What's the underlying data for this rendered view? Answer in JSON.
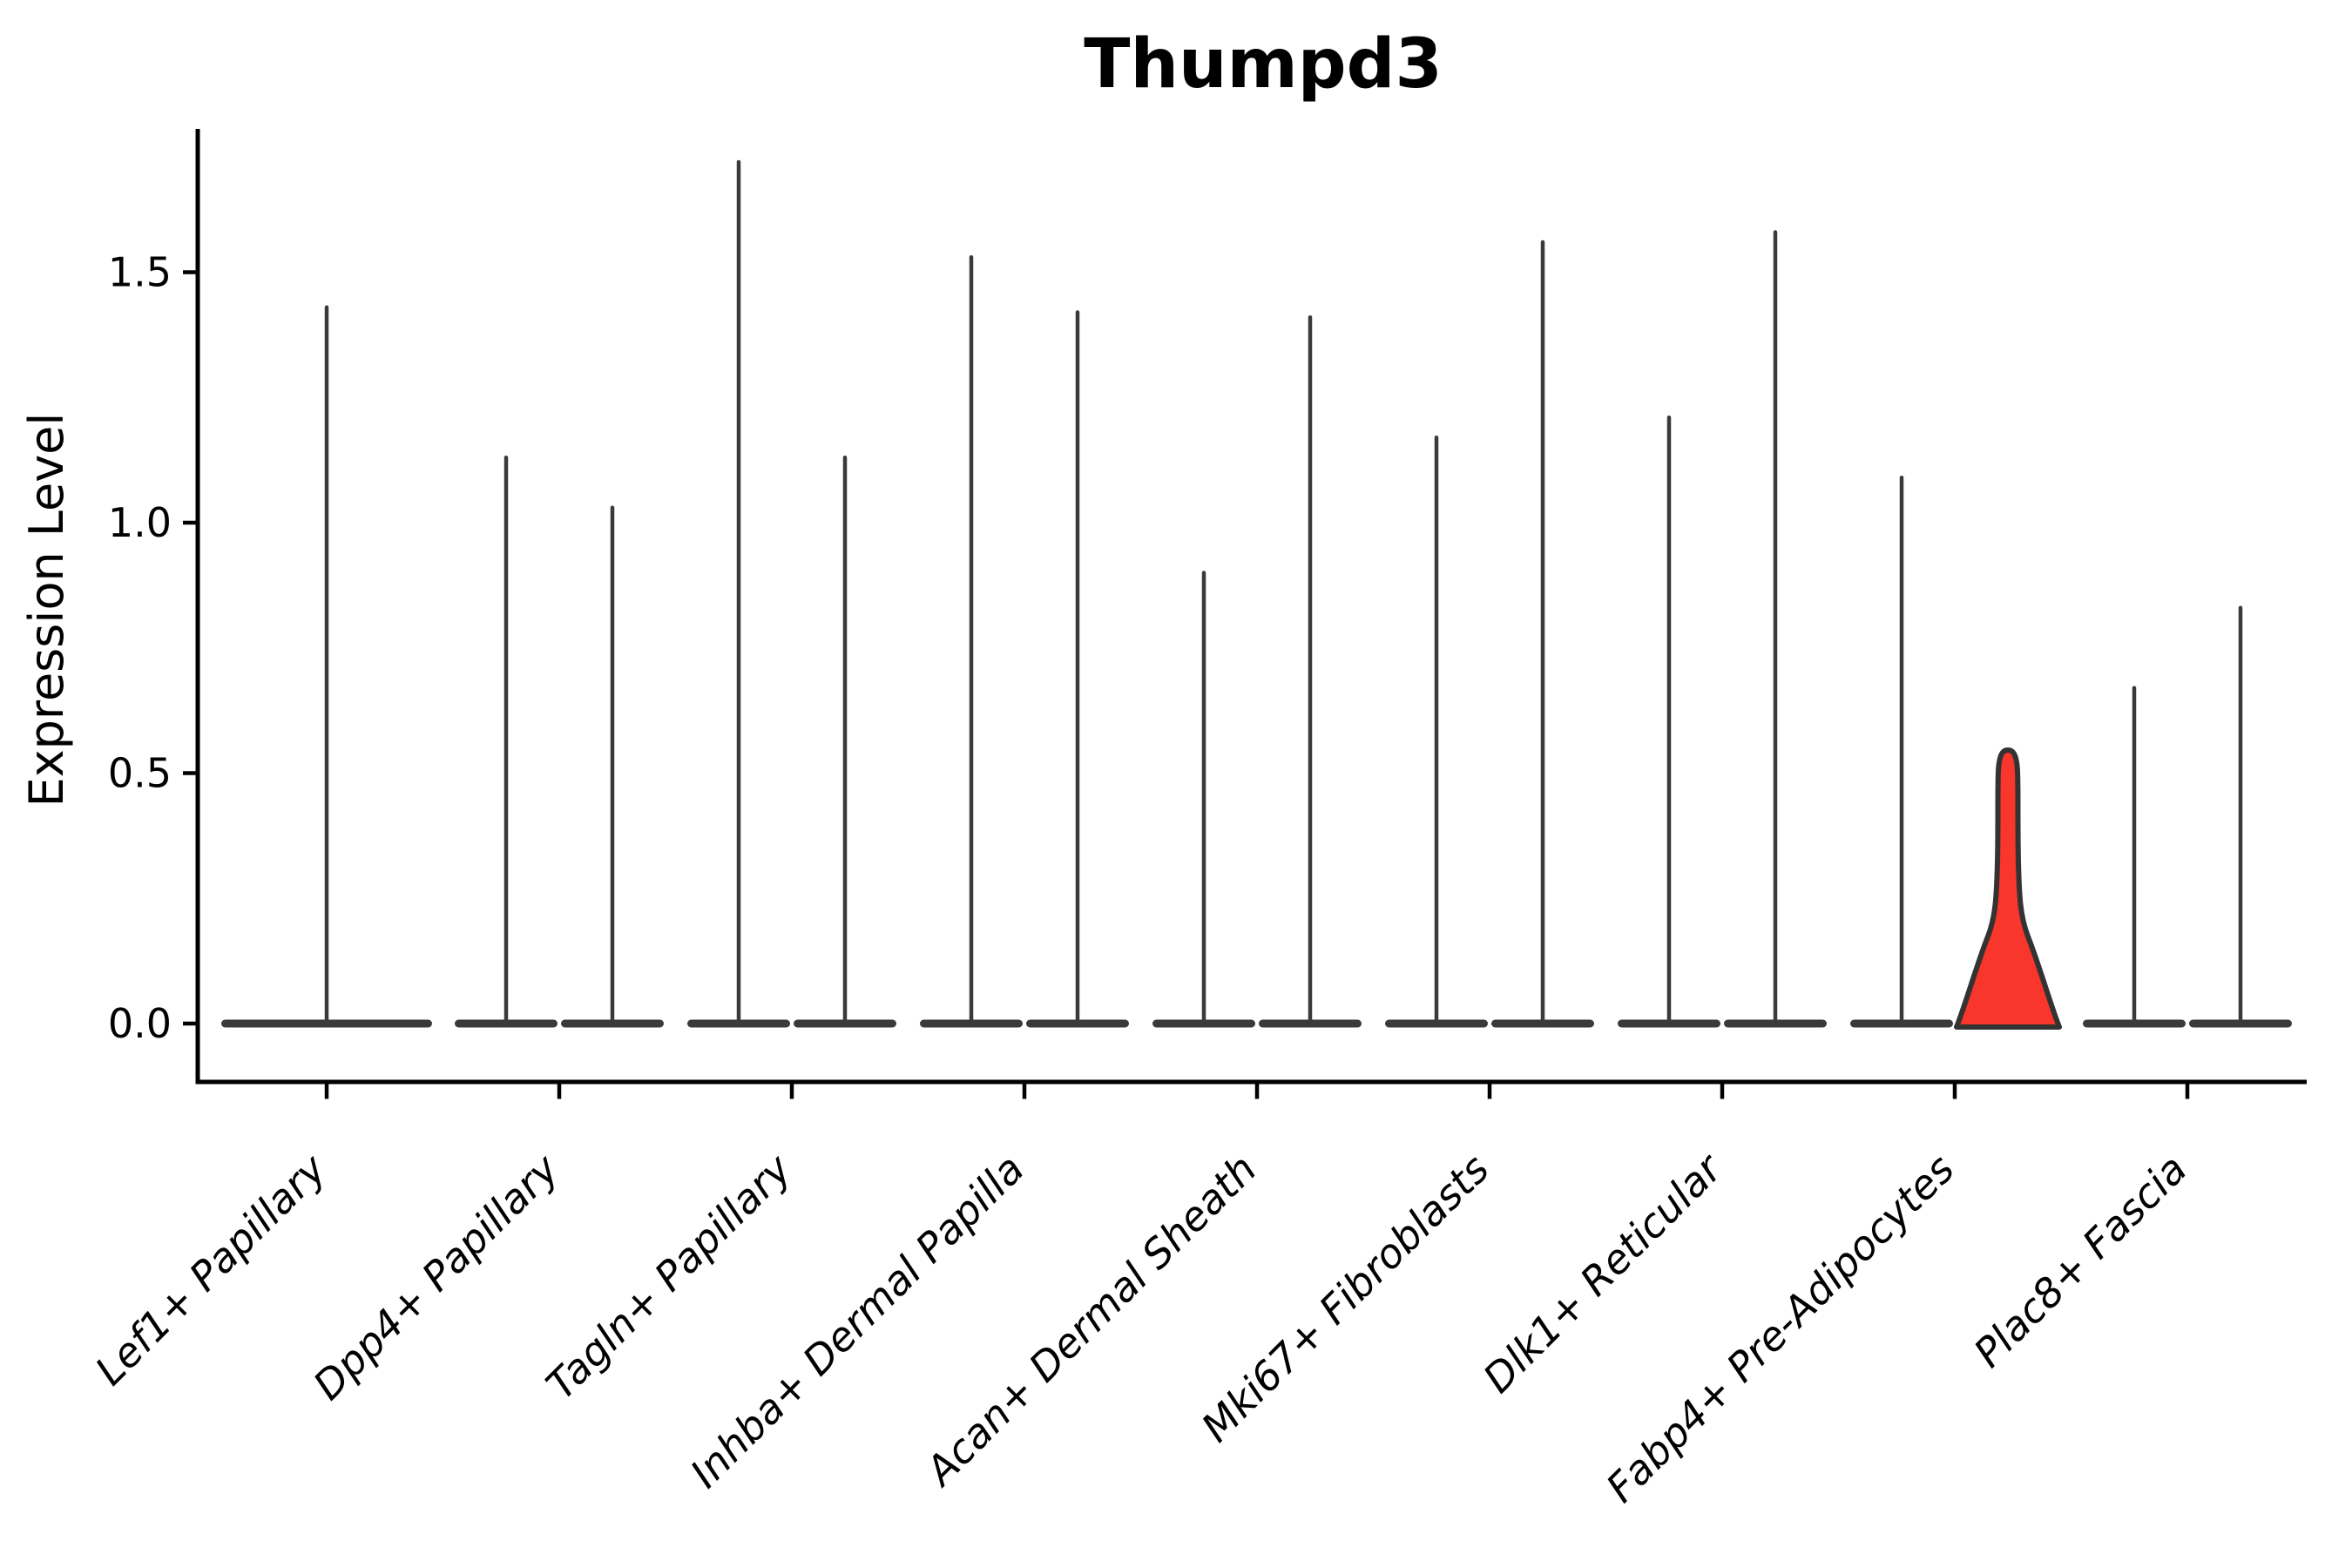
{
  "chart_data": {
    "type": "violin",
    "title": "Thumpd3",
    "ylabel": "Expression Level",
    "xlabel": "",
    "y_ticks": [
      0.0,
      0.5,
      1.0,
      1.5
    ],
    "y_tick_labels": [
      "0.0",
      "0.5",
      "1.0",
      "1.5"
    ],
    "ylim": [
      -0.12,
      1.79
    ],
    "grid": false,
    "legend": "none",
    "background": "#ffffff",
    "categories": [
      "Lef1+ Papillary",
      "Dpp4+ Papillary",
      "Tagln+ Papillary",
      "Inhba+ Dermal Papilla",
      "Acan+ Dermal Sheath",
      "Mki67+ Fibroblasts",
      "Dlk1+ Reticular",
      "Fabp4+ Pre-Adipocytes",
      "Plac8+ Fascia"
    ],
    "violins": [
      {
        "category": "Lef1+ Papillary",
        "slot": 0,
        "position": "center",
        "max_expression": 1.43,
        "highlight": false
      },
      {
        "category": "Dpp4+ Papillary",
        "slot": 1,
        "position": "left",
        "max_expression": 1.13,
        "highlight": false
      },
      {
        "category": "Dpp4+ Papillary",
        "slot": 1,
        "position": "right",
        "max_expression": 1.03,
        "highlight": false
      },
      {
        "category": "Tagln+ Papillary",
        "slot": 2,
        "position": "left",
        "max_expression": 1.72,
        "highlight": false
      },
      {
        "category": "Tagln+ Papillary",
        "slot": 2,
        "position": "right",
        "max_expression": 1.13,
        "highlight": false
      },
      {
        "category": "Inhba+ Dermal Papilla",
        "slot": 3,
        "position": "left",
        "max_expression": 1.53,
        "highlight": false
      },
      {
        "category": "Inhba+ Dermal Papilla",
        "slot": 3,
        "position": "right",
        "max_expression": 1.42,
        "highlight": false
      },
      {
        "category": "Acan+ Dermal Sheath",
        "slot": 4,
        "position": "left",
        "max_expression": 0.9,
        "highlight": false
      },
      {
        "category": "Acan+ Dermal Sheath",
        "slot": 4,
        "position": "right",
        "max_expression": 1.41,
        "highlight": false
      },
      {
        "category": "Mki67+ Fibroblasts",
        "slot": 5,
        "position": "left",
        "max_expression": 1.17,
        "highlight": false
      },
      {
        "category": "Mki67+ Fibroblasts",
        "slot": 5,
        "position": "right",
        "max_expression": 1.56,
        "highlight": false
      },
      {
        "category": "Dlk1+ Reticular",
        "slot": 6,
        "position": "left",
        "max_expression": 1.21,
        "highlight": false
      },
      {
        "category": "Dlk1+ Reticular",
        "slot": 6,
        "position": "right",
        "max_expression": 1.58,
        "highlight": false
      },
      {
        "category": "Fabp4+ Pre-Adipocytes",
        "slot": 7,
        "position": "left",
        "max_expression": 1.09,
        "highlight": false
      },
      {
        "category": "Fabp4+ Pre-Adipocytes",
        "slot": 7,
        "position": "right",
        "max_expression": 0.56,
        "highlight": true
      },
      {
        "category": "Plac8+ Fascia",
        "slot": 8,
        "position": "left",
        "max_expression": 0.67,
        "highlight": false
      },
      {
        "category": "Plac8+ Fascia",
        "slot": 8,
        "position": "right",
        "max_expression": 0.83,
        "highlight": false
      }
    ],
    "colors": {
      "violin_stroke": "#3a3a3a",
      "highlight_fill": "#f8362b",
      "highlight_stroke": "#333333",
      "axis": "#000000",
      "text": "#000000"
    }
  }
}
